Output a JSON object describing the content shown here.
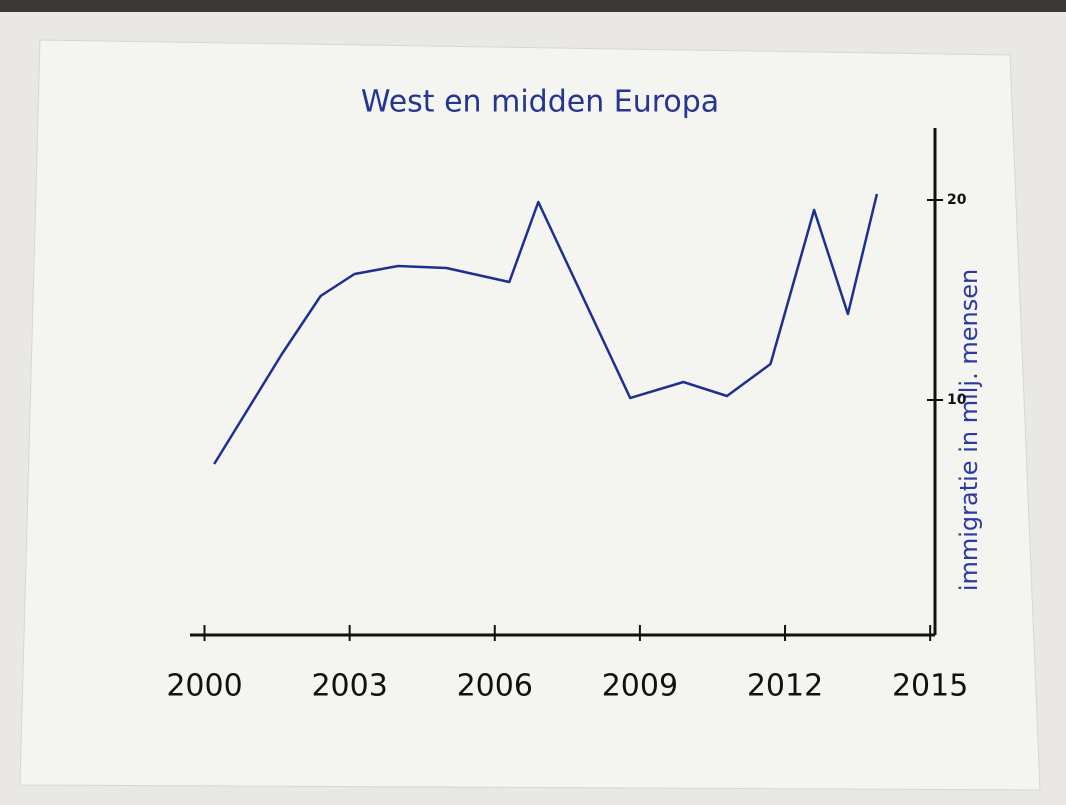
{
  "chart_data": {
    "type": "line",
    "title": "West en midden Europa",
    "y_axis_label": "immigratie in milj. mensen",
    "x": [
      2000.2,
      2001.6,
      2002.4,
      2003.1,
      2004.0,
      2005.0,
      2006.3,
      2006.9,
      2008.8,
      2009.9,
      2010.8,
      2011.7,
      2012.6,
      2013.3,
      2013.9
    ],
    "values": [
      6.8,
      12.3,
      15.2,
      16.3,
      16.7,
      16.6,
      15.9,
      19.9,
      10.1,
      10.9,
      10.2,
      11.8,
      19.5,
      14.3,
      20.3
    ],
    "color": "#1f2f8f",
    "xlim": [
      1999.7,
      2015.1
    ],
    "xticks": [
      2000,
      2003,
      2006,
      2009,
      2012,
      2015
    ],
    "ylim": [
      -1.75,
      23.6
    ],
    "yticks": [
      10,
      20
    ],
    "y_axis_side": "right",
    "grid": false
  }
}
